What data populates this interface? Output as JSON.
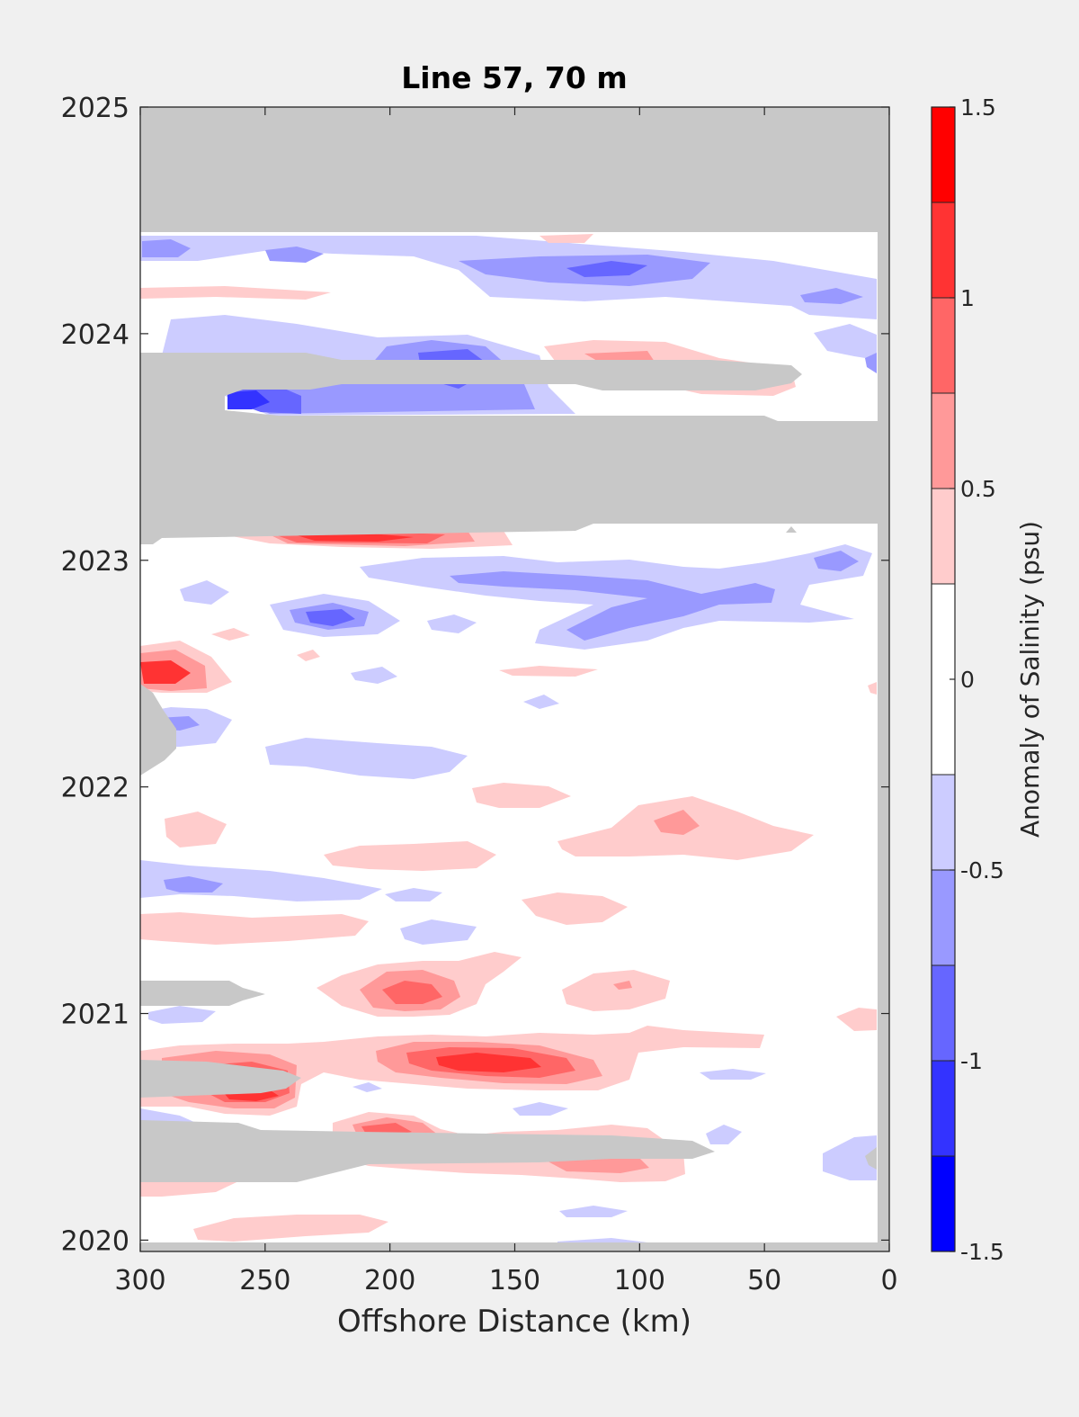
{
  "chart_data": {
    "type": "heatmap",
    "subtype": "filled-contour",
    "title": "Line 57, 70 m",
    "xlabel": "Offshore Distance (km)",
    "ylabel": "",
    "xlim": [
      300,
      0
    ],
    "x_reversed": true,
    "ylim": [
      2019.95,
      2025
    ],
    "x_ticks": [
      300,
      250,
      200,
      150,
      100,
      50,
      0
    ],
    "y_ticks": [
      2020,
      2021,
      2022,
      2023,
      2024,
      2025
    ],
    "grid": false,
    "colorbar": {
      "label": "Anomaly of Salinity (psu)",
      "range": [
        -1.5,
        1.5
      ],
      "ticks": [
        -1.5,
        -1,
        -0.5,
        0,
        0.5,
        1,
        1.5
      ],
      "levels": [
        -1.5,
        -1.25,
        -1,
        -0.75,
        -0.5,
        -0.25,
        0.25,
        0.5,
        0.75,
        1,
        1.25,
        1.5
      ],
      "colors": [
        "#0000ff",
        "#3333ff",
        "#6666ff",
        "#9999ff",
        "#ccccff",
        "#ffffff",
        "#ffcccc",
        "#ff9999",
        "#ff6666",
        "#ff3333",
        "#ff0000"
      ]
    },
    "nodata_color": "#c8c8c8",
    "nodata_regions": [
      {
        "x": [
          300,
          0
        ],
        "y": [
          2024.45,
          2025
        ]
      },
      {
        "x": [
          300,
          0
        ],
        "y": [
          2023.1,
          2023.9
        ]
      },
      {
        "x": [
          300,
          285
        ],
        "y": [
          2022.05,
          2022.45
        ]
      },
      {
        "x": [
          300,
          220
        ],
        "y": [
          2021,
          2021.12
        ]
      },
      {
        "x": [
          300,
          230
        ],
        "y": [
          2020.6,
          2020.75
        ]
      },
      {
        "x": [
          300,
          70
        ],
        "y": [
          2020.25,
          2020.5
        ]
      }
    ],
    "anomaly_features": [
      {
        "x": 220,
        "y": 2023.1,
        "value": 1.4
      },
      {
        "x": 220,
        "y": 2022.75,
        "value": -0.9
      },
      {
        "x": 295,
        "y": 2022.5,
        "value": 1.0
      },
      {
        "x": 220,
        "y": 2023.85,
        "value": -1.0
      },
      {
        "x": 258,
        "y": 2023.7,
        "value": -1.4
      },
      {
        "x": 100,
        "y": 2024.3,
        "value": -0.85
      },
      {
        "x": 85,
        "y": 2021.85,
        "value": 0.6
      },
      {
        "x": 190,
        "y": 2021.05,
        "value": 0.8
      },
      {
        "x": 160,
        "y": 2020.75,
        "value": 1.1
      },
      {
        "x": 265,
        "y": 2020.6,
        "value": 1.0
      },
      {
        "x": 200,
        "y": 2020.48,
        "value": 0.9
      }
    ]
  }
}
